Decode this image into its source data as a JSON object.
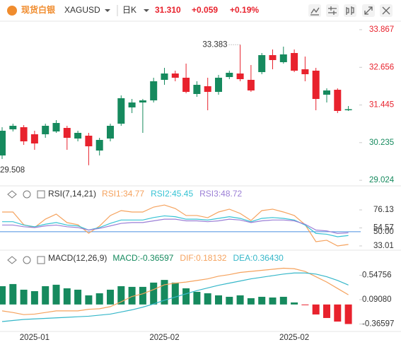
{
  "header": {
    "logo_text": "现货白银",
    "symbol": "XAGUSD",
    "period": "日K",
    "price": "31.310",
    "change": "+0.059",
    "change_pct": "+0.19%"
  },
  "chart_data": [
    {
      "type": "candlestick",
      "up_color": "#168a5e",
      "down_color": "#e8222d",
      "open": [
        29.822,
        30.663,
        30.731,
        30.504,
        30.504,
        30.594,
        30.708,
        30.367,
        30.458,
        29.981,
        30.367,
        30.844,
        31.367,
        31.526,
        31.594,
        32.254,
        32.458,
        32.322,
        31.799,
        32.049,
        31.867,
        32.344,
        32.458,
        32.254,
        32.503,
        33.049,
        32.822,
        33.117,
        32.594,
        32.549,
        31.776,
        31.935,
        31.276
      ],
      "high": [
        30.731,
        30.844,
        30.799,
        30.617,
        30.844,
        30.958,
        30.776,
        30.617,
        30.549,
        30.39,
        30.844,
        31.754,
        31.64,
        31.64,
        32.322,
        32.64,
        32.549,
        32.776,
        32.208,
        32.322,
        32.413,
        32.549,
        33.383,
        32.731,
        33.117,
        33.231,
        33.322,
        33.231,
        33.003,
        32.64,
        31.981,
        31.981,
        31.413
      ],
      "low": [
        29.708,
        30.594,
        30.163,
        30.004,
        30.39,
        30.549,
        30.004,
        30.276,
        29.508,
        29.822,
        30.276,
        30.776,
        31.185,
        30.549,
        31.526,
        32.094,
        32.208,
        31.822,
        31.708,
        31.276,
        31.776,
        32.276,
        32.208,
        31.867,
        32.435,
        32.594,
        32.776,
        32.503,
        32.208,
        31.276,
        31.526,
        31.185,
        31.254
      ],
      "close": [
        30.617,
        30.776,
        30.276,
        30.208,
        30.776,
        30.867,
        30.39,
        30.549,
        30.117,
        30.322,
        30.776,
        31.663,
        31.526,
        31.594,
        32.208,
        32.458,
        32.322,
        31.867,
        32.094,
        31.867,
        32.322,
        32.481,
        32.276,
        31.913,
        33.049,
        32.89,
        33.072,
        32.549,
        32.435,
        31.64,
        31.913,
        31.254,
        31.31
      ],
      "ylim": [
        28.867,
        34.14
      ],
      "yticks": [
        33.867,
        32.656,
        31.445,
        30.235,
        29.024
      ]
    },
    {
      "type": "line",
      "title": "RSI(7,14,21)",
      "series": [
        {
          "name": "RSI1:34.77",
          "color": "#f5a25d",
          "values": [
            73.6,
            73.6,
            58.4,
            55.0,
            65.1,
            71.1,
            60.9,
            58.4,
            48.2,
            56.7,
            69.4,
            75.3,
            73.6,
            73.6,
            79.5,
            82.0,
            77.8,
            69.4,
            69.4,
            66.8,
            73.6,
            77.0,
            71.9,
            63.4,
            75.3,
            77.0,
            73.6,
            69.4,
            58.4,
            38.1,
            39.8,
            33.0,
            34.77
          ]
        },
        {
          "name": "RSI2:45.45",
          "color": "#36c3d4",
          "values": [
            62,
            62,
            58,
            56,
            59,
            61,
            58,
            57,
            52,
            55,
            60,
            64,
            64,
            64,
            67,
            69,
            68,
            65,
            65,
            64,
            66,
            68,
            66,
            62,
            66,
            67,
            66,
            64,
            58,
            48,
            47,
            44,
            45.45
          ]
        },
        {
          "name": "RSI3:48.72",
          "color": "#9b7fd6",
          "values": [
            58,
            58,
            56,
            55,
            57,
            58,
            56,
            55,
            52,
            54,
            57,
            60,
            61,
            61,
            63,
            65,
            65,
            63,
            63,
            62,
            63,
            65,
            64,
            61,
            63,
            64,
            64,
            63,
            59,
            52,
            51,
            48,
            48.72
          ]
        }
      ],
      "ylim": [
        29.6,
        103.2
      ],
      "yticks": [
        76.13,
        54.57,
        {
          "value": 50,
          "label": "50.00",
          "line": "#4a8fe0"
        },
        33.01
      ]
    },
    {
      "type": "macd",
      "title": "MACD(12,26,9)",
      "categories": [
        null,
        null,
        null,
        "2025-01",
        null,
        null,
        null,
        null,
        null,
        null,
        null,
        null,
        null,
        null,
        null,
        "2025-02",
        null,
        null,
        null,
        null,
        null,
        null,
        null,
        null,
        null,
        null,
        null,
        "2025-02",
        null,
        null,
        null,
        null,
        null
      ],
      "series": [
        {
          "name": "MACD:-0.36597",
          "style": "bar",
          "color": "#168a5e",
          "negative_color": "#e8222d",
          "values": [
            0.343,
            0.383,
            0.277,
            0.25,
            0.343,
            0.37,
            0.303,
            0.277,
            0.171,
            0.21,
            0.277,
            0.343,
            0.33,
            0.33,
            0.41,
            0.46,
            0.41,
            0.303,
            0.237,
            0.21,
            0.171,
            0.144,
            0.171,
            0.118,
            0.144,
            0.131,
            0.144,
            0.038,
            -0.01,
            -0.187,
            -0.253,
            -0.32,
            -0.36597
          ]
        },
        {
          "name": "DIF:0.18132",
          "style": "line",
          "color": "#f5a25d",
          "values": [
            -0.12,
            -0.15,
            -0.19,
            -0.18,
            -0.15,
            -0.12,
            -0.12,
            -0.12,
            -0.09,
            -0.08,
            -0.04,
            0.05,
            0.15,
            0.2,
            0.28,
            0.37,
            0.4,
            0.42,
            0.45,
            0.48,
            0.53,
            0.56,
            0.6,
            0.62,
            0.64,
            0.66,
            0.68,
            0.67,
            0.62,
            0.52,
            0.42,
            0.3,
            0.18132
          ]
        },
        {
          "name": "DEA:0.36430",
          "style": "line",
          "color": "#36b7c9",
          "values": [
            -0.32,
            -0.3,
            -0.28,
            -0.27,
            -0.26,
            -0.25,
            -0.24,
            -0.23,
            -0.22,
            -0.2,
            -0.18,
            -0.14,
            -0.1,
            -0.05,
            0.01,
            0.08,
            0.14,
            0.2,
            0.26,
            0.31,
            0.36,
            0.4,
            0.44,
            0.48,
            0.51,
            0.54,
            0.57,
            0.59,
            0.59,
            0.57,
            0.52,
            0.45,
            0.3643
          ]
        }
      ],
      "ylim": [
        -0.492,
        0.991
      ],
      "yticks": [
        0.54756,
        {
          "value": 0.0908,
          "label": "0.09080"
        },
        -0.36597
      ]
    }
  ]
}
